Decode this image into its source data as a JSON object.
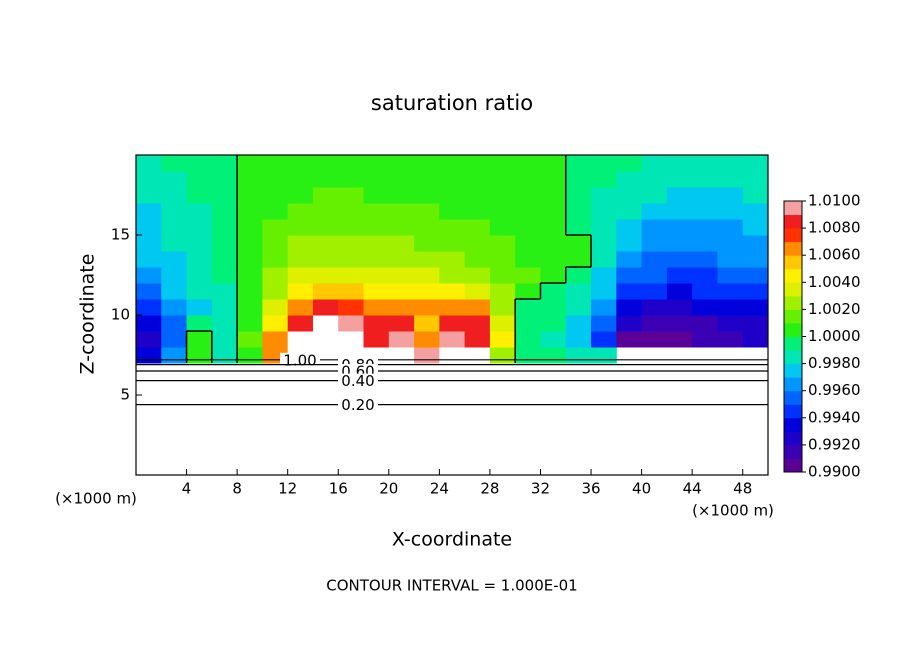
{
  "chart_data": {
    "type": "contour",
    "title": "saturation ratio",
    "x_label": "X-coordinate",
    "y_label": "Z-coordinate",
    "x_unit": "(×1000 m)",
    "footer": "CONTOUR INTERVAL = 1.000E-01",
    "xlim": [
      0,
      50
    ],
    "ylim": [
      0,
      20
    ],
    "xticks": [
      4,
      8,
      12,
      16,
      20,
      24,
      28,
      32,
      36,
      40,
      44,
      48
    ],
    "yticks": [
      5,
      10,
      15
    ],
    "x": [
      1,
      3,
      5,
      7,
      9,
      11,
      13,
      15,
      17,
      19,
      21,
      23,
      25,
      27,
      29,
      31,
      33,
      35,
      37,
      39,
      41,
      43,
      45,
      47,
      49
    ],
    "y": [
      7.5,
      8.5,
      9.5,
      10.5,
      11.5,
      12.5,
      13.5,
      14.5,
      15.5,
      16.5,
      17.5,
      18.5,
      19.5
    ],
    "z": [
      [
        0.9935,
        0.996,
        1.0003,
        0.9982,
        1.001,
        1.007,
        1.013,
        1.014,
        1.0135,
        1.012,
        1.0115,
        1.01,
        1.011,
        1.0105,
        1.003,
        0.9995,
        0.999,
        0.9985,
        0.998,
        null,
        null,
        null,
        null,
        null,
        null
      ],
      [
        0.9925,
        0.995,
        1.0005,
        0.9985,
        1.0012,
        1.006,
        1.011,
        1.013,
        1.012,
        1.0088,
        1.0095,
        1.007,
        1.0096,
        1.009,
        1.004,
        0.9996,
        0.9988,
        0.9975,
        0.9945,
        0.9908,
        0.9905,
        0.9908,
        0.991,
        0.9912,
        0.9922
      ],
      [
        0.993,
        0.9955,
        0.999,
        0.9986,
        1.001,
        1.0045,
        1.0085,
        1.012,
        1.0095,
        1.008,
        1.009,
        1.0058,
        1.0088,
        1.0082,
        1.0035,
        0.9997,
        0.999,
        0.9978,
        0.9952,
        0.9922,
        0.9915,
        0.9916,
        0.9918,
        0.992,
        0.9928
      ],
      [
        0.994,
        0.9962,
        0.9978,
        0.9988,
        1.0008,
        1.0035,
        1.0062,
        1.008,
        1.0078,
        1.007,
        1.0066,
        1.0062,
        1.0068,
        1.006,
        1.003,
        0.9998,
        0.9992,
        0.9982,
        0.9962,
        0.9935,
        0.9928,
        0.9928,
        0.993,
        0.9934,
        0.9936
      ],
      [
        0.9955,
        0.997,
        0.9982,
        0.9989,
        1.0007,
        1.0025,
        1.0042,
        1.0052,
        1.0052,
        1.0048,
        1.0044,
        1.0042,
        1.004,
        1.0034,
        1.0022,
        1.0004,
        0.9995,
        0.9985,
        0.997,
        0.9948,
        0.994,
        0.9938,
        0.994,
        0.9944,
        0.9946
      ],
      [
        0.9965,
        0.9975,
        0.9985,
        0.999,
        1.0006,
        1.002,
        1.0032,
        1.0038,
        1.0038,
        1.0036,
        1.0034,
        1.0032,
        1.003,
        1.0025,
        1.0018,
        1.0011,
        1.0005,
        0.999,
        0.9976,
        0.9958,
        0.995,
        0.9946,
        0.9948,
        0.9952,
        0.9956
      ],
      [
        0.997,
        0.9978,
        0.9986,
        0.9991,
        1.0005,
        1.0017,
        1.0026,
        1.003,
        1.003,
        1.0029,
        1.0027,
        1.0025,
        1.0022,
        1.0018,
        1.0014,
        1.0009,
        1.0004,
        1.0001,
        0.998,
        0.9966,
        0.9956,
        0.9954,
        0.9956,
        0.996,
        0.9964
      ],
      [
        0.9972,
        0.998,
        0.9987,
        0.9991,
        1.0005,
        1.0014,
        1.0021,
        1.0024,
        1.0024,
        1.0023,
        1.0021,
        1.0019,
        1.0016,
        1.0014,
        1.0011,
        1.0007,
        1.0003,
        1.0001,
        0.9982,
        0.9972,
        0.9962,
        0.996,
        0.9961,
        0.9964,
        0.9968
      ],
      [
        0.9975,
        0.9982,
        0.9988,
        0.9992,
        1.0004,
        1.0012,
        1.0017,
        1.0019,
        1.0019,
        1.0018,
        1.0016,
        1.0014,
        1.0012,
        1.0011,
        1.0009,
        1.0006,
        1.0003,
        0.9991,
        0.9984,
        0.9976,
        0.9968,
        0.9966,
        0.9966,
        0.9968,
        0.9972
      ],
      [
        0.9978,
        0.9984,
        0.9989,
        0.9992,
        1.0004,
        1.001,
        1.0013,
        1.0015,
        1.0015,
        1.0014,
        1.0012,
        1.0011,
        1.001,
        1.0009,
        1.0007,
        1.0005,
        1.0002,
        0.9992,
        0.9986,
        0.998,
        0.9974,
        0.9972,
        0.9972,
        0.9974,
        0.9976
      ],
      [
        0.998,
        0.9986,
        0.999,
        0.9992,
        1.0003,
        1.0008,
        1.001,
        1.0011,
        1.0011,
        1.001,
        1.0009,
        1.0009,
        1.0008,
        1.0007,
        1.0006,
        1.0004,
        1.0002,
        0.9993,
        0.9988,
        0.9984,
        0.998,
        0.9978,
        0.9977,
        0.9979,
        0.998
      ],
      [
        0.9982,
        0.9988,
        0.9991,
        0.9993,
        1.0003,
        1.0006,
        1.0007,
        1.0007,
        1.0007,
        1.0007,
        1.0006,
        1.0006,
        1.0006,
        1.0005,
        1.0005,
        1.0003,
        1.0002,
        0.9994,
        0.999,
        0.9987,
        0.9985,
        0.9983,
        0.9982,
        0.9983,
        0.9983
      ],
      [
        0.9985,
        0.999,
        0.9992,
        0.9994,
        1.0002,
        1.0004,
        1.0004,
        1.0004,
        1.0004,
        1.0004,
        1.0004,
        1.0004,
        1.0004,
        1.0004,
        1.0004,
        1.0002,
        1.0001,
        0.9995,
        0.9992,
        0.999,
        0.9988,
        0.9987,
        0.9987,
        0.9987,
        0.9986
      ]
    ],
    "clim": [
      0.99,
      1.01
    ],
    "colors": [
      "#5a0096",
      "#3c00b4",
      "#1e00c8",
      "#0000dc",
      "#0032ff",
      "#0064ff",
      "#0096ff",
      "#00c8f0",
      "#00e6b4",
      "#00f078",
      "#28f014",
      "#64f000",
      "#a0f000",
      "#dcf000",
      "#fff000",
      "#ffc800",
      "#ff8c00",
      "#ff3200",
      "#f01e1e",
      "#f5a0a0"
    ],
    "cticks": [
      {
        "value": 0.99,
        "label": "0.9900"
      },
      {
        "value": 0.992,
        "label": "0.9920"
      },
      {
        "value": 0.994,
        "label": "0.9940"
      },
      {
        "value": 0.996,
        "label": "0.9960"
      },
      {
        "value": 0.998,
        "label": "0.9980"
      },
      {
        "value": 1,
        "label": "1.0000"
      },
      {
        "value": 1.002,
        "label": "1.0020"
      },
      {
        "value": 1.004,
        "label": "1.0040"
      },
      {
        "value": 1.006,
        "label": "1.0060"
      },
      {
        "value": 1.008,
        "label": "1.0080"
      },
      {
        "value": 1.01,
        "label": "1.0100"
      }
    ],
    "contour_level": 1,
    "contours": {
      "levels": [
        {
          "value": 1,
          "label": "1.00"
        },
        {
          "value": 0.8,
          "label": "0.80"
        },
        {
          "value": 0.6,
          "label": "0.60"
        },
        {
          "value": 0.4,
          "label": "0.40"
        },
        {
          "value": 0.2,
          "label": "0.20"
        }
      ],
      "heights": [
        7.2,
        6.9,
        6.5,
        5.9,
        4.4
      ]
    }
  }
}
